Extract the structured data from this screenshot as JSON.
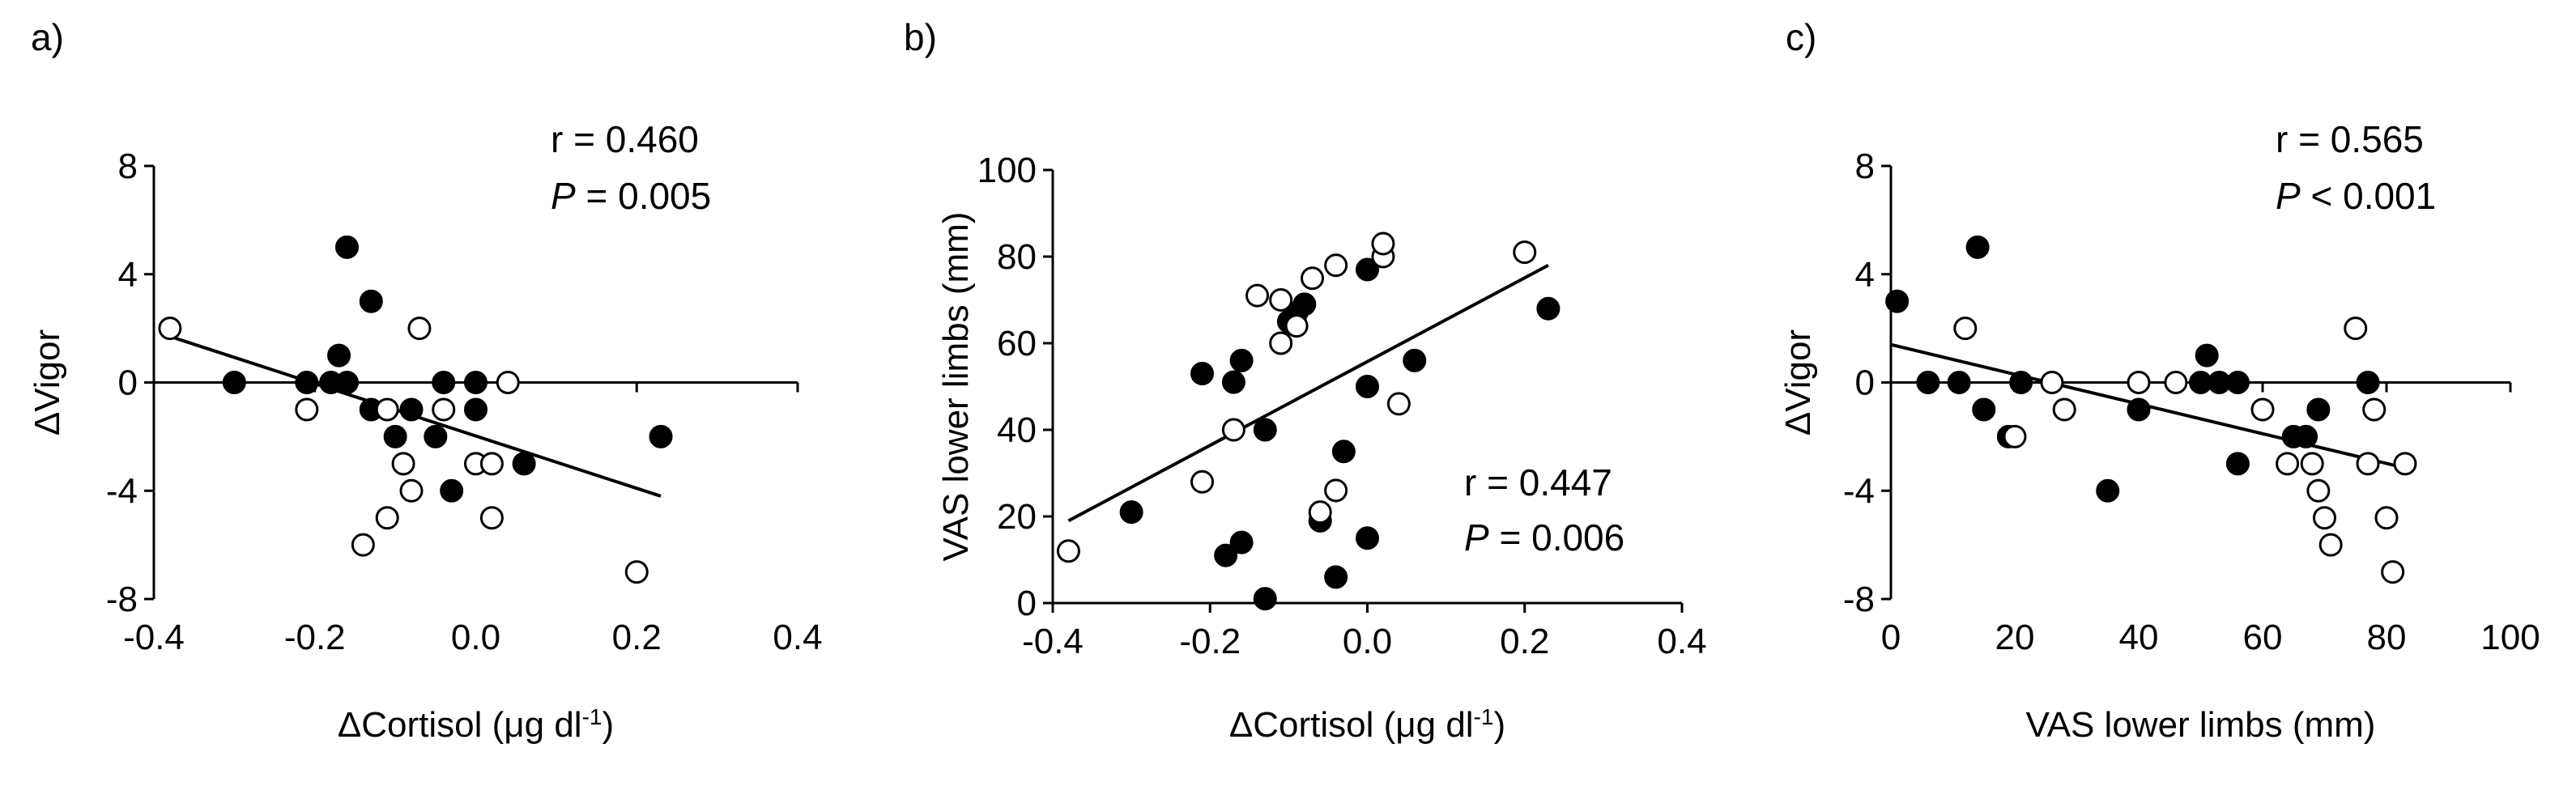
{
  "figure": {
    "colors": {
      "axis": "#000000",
      "filled": "#000000",
      "open_fill": "#ffffff",
      "open_stroke": "#000000"
    }
  },
  "chart_data": [
    {
      "type": "scatter",
      "panel_label": "a)",
      "xlabel": "ΔCortisol (μg dl",
      "xlabel_sup": "-1",
      "xlabel_close": ")",
      "ylabel": "ΔVigor",
      "xlim": [
        -0.4,
        0.4
      ],
      "ylim": [
        -8,
        8
      ],
      "xticks": [
        -0.4,
        -0.2,
        0,
        0.2,
        0.4
      ],
      "xtick_labels": [
        "-0.4",
        "-0.2",
        "0.0",
        "0.2",
        "0.4"
      ],
      "yticks": [
        -8,
        -4,
        0,
        4,
        8
      ],
      "ytick_labels": [
        "-8",
        "-4",
        "0",
        "4",
        "8"
      ],
      "stat_r": "r = 0.460",
      "stat_p_symbol": "P",
      "stat_p_value": " = 0.005",
      "trendline": {
        "x": [
          -0.38,
          0.23
        ],
        "y": [
          1.7,
          -4.2
        ]
      },
      "series": [
        {
          "name": "filled",
          "marker": "filled",
          "points": [
            [
              -0.3,
              0
            ],
            [
              -0.21,
              0
            ],
            [
              -0.18,
              0
            ],
            [
              -0.17,
              1
            ],
            [
              -0.16,
              5
            ],
            [
              -0.16,
              0
            ],
            [
              -0.13,
              3
            ],
            [
              -0.13,
              -1
            ],
            [
              -0.1,
              -2
            ],
            [
              -0.08,
              -1
            ],
            [
              -0.05,
              -2
            ],
            [
              -0.04,
              0
            ],
            [
              -0.03,
              -4
            ],
            [
              0,
              0
            ],
            [
              0,
              -1
            ],
            [
              0.06,
              -3
            ],
            [
              0.23,
              -2
            ]
          ]
        },
        {
          "name": "open",
          "marker": "open",
          "points": [
            [
              -0.38,
              2
            ],
            [
              -0.21,
              -1
            ],
            [
              -0.14,
              -6
            ],
            [
              -0.11,
              -5
            ],
            [
              -0.11,
              -1
            ],
            [
              -0.09,
              -3
            ],
            [
              -0.08,
              -4
            ],
            [
              -0.07,
              2
            ],
            [
              -0.04,
              -1
            ],
            [
              0,
              -3
            ],
            [
              0.02,
              -3
            ],
            [
              0.02,
              -5
            ],
            [
              0.04,
              0
            ],
            [
              0.2,
              -7
            ]
          ]
        }
      ]
    },
    {
      "type": "scatter",
      "panel_label": "b)",
      "xlabel": "ΔCortisol (μg dl",
      "xlabel_sup": "-1",
      "xlabel_close": ")",
      "ylabel": "VAS lower limbs (mm)",
      "xlim": [
        -0.4,
        0.4
      ],
      "ylim": [
        0,
        100
      ],
      "xticks": [
        -0.4,
        -0.2,
        0,
        0.2,
        0.4
      ],
      "xtick_labels": [
        "-0.4",
        "-0.2",
        "0.0",
        "0.2",
        "0.4"
      ],
      "yticks": [
        0,
        20,
        40,
        60,
        80,
        100
      ],
      "ytick_labels": [
        "0",
        "20",
        "40",
        "60",
        "80",
        "100"
      ],
      "stat_r": "r = 0.447",
      "stat_p_symbol": "P",
      "stat_p_value": " = 0.006",
      "trendline": {
        "x": [
          -0.38,
          0.23
        ],
        "y": [
          19,
          78
        ]
      },
      "series": [
        {
          "name": "filled",
          "marker": "filled",
          "points": [
            [
              -0.3,
              21
            ],
            [
              -0.21,
              53
            ],
            [
              -0.18,
              11
            ],
            [
              -0.17,
              51
            ],
            [
              -0.16,
              56
            ],
            [
              -0.16,
              14
            ],
            [
              -0.13,
              40
            ],
            [
              -0.13,
              1
            ],
            [
              -0.1,
              65
            ],
            [
              -0.09,
              67
            ],
            [
              -0.08,
              69
            ],
            [
              -0.06,
              19
            ],
            [
              -0.04,
              6
            ],
            [
              -0.03,
              35
            ],
            [
              0,
              50
            ],
            [
              0,
              77
            ],
            [
              0,
              15
            ],
            [
              0.06,
              56
            ],
            [
              0.23,
              68
            ]
          ]
        },
        {
          "name": "open",
          "marker": "open",
          "points": [
            [
              -0.38,
              12
            ],
            [
              -0.21,
              28
            ],
            [
              -0.17,
              40
            ],
            [
              -0.14,
              71
            ],
            [
              -0.11,
              70
            ],
            [
              -0.11,
              60
            ],
            [
              -0.09,
              64
            ],
            [
              -0.07,
              75
            ],
            [
              -0.06,
              21
            ],
            [
              -0.04,
              78
            ],
            [
              -0.04,
              26
            ],
            [
              0.02,
              80
            ],
            [
              0.02,
              83
            ],
            [
              0.04,
              46
            ],
            [
              0.2,
              81
            ]
          ]
        }
      ]
    },
    {
      "type": "scatter",
      "panel_label": "c)",
      "xlabel": "VAS lower limbs (mm)",
      "ylabel": "ΔVigor",
      "xlim": [
        0,
        100
      ],
      "ylim": [
        -8,
        8
      ],
      "xticks": [
        0,
        20,
        40,
        60,
        80,
        100
      ],
      "xtick_labels": [
        "0",
        "20",
        "40",
        "60",
        "80",
        "100"
      ],
      "yticks": [
        -8,
        -4,
        0,
        4,
        8
      ],
      "ytick_labels": [
        "-8",
        "-4",
        "0",
        "4",
        "8"
      ],
      "stat_r": "r = 0.565",
      "stat_p_symbol": "P",
      "stat_p_value": " < 0.001",
      "trendline": {
        "x": [
          0,
          82
        ],
        "y": [
          1.4,
          -3.1
        ]
      },
      "series": [
        {
          "name": "filled",
          "marker": "filled",
          "points": [
            [
              1,
              3
            ],
            [
              6,
              0
            ],
            [
              11,
              0
            ],
            [
              14,
              5
            ],
            [
              15,
              -1
            ],
            [
              19,
              -2
            ],
            [
              21,
              0
            ],
            [
              35,
              -4
            ],
            [
              40,
              -1
            ],
            [
              51,
              1
            ],
            [
              50,
              0
            ],
            [
              53,
              0
            ],
            [
              56,
              0
            ],
            [
              56,
              -3
            ],
            [
              65,
              -2
            ],
            [
              67,
              -2
            ],
            [
              69,
              -1
            ],
            [
              77,
              0
            ]
          ]
        },
        {
          "name": "open",
          "marker": "open",
          "points": [
            [
              12,
              2
            ],
            [
              20,
              -2
            ],
            [
              26,
              0
            ],
            [
              28,
              -1
            ],
            [
              40,
              0
            ],
            [
              46,
              0
            ],
            [
              60,
              -1
            ],
            [
              64,
              -3
            ],
            [
              68,
              -3
            ],
            [
              69,
              -4
            ],
            [
              70,
              -5
            ],
            [
              71,
              -6
            ],
            [
              75,
              2
            ],
            [
              77,
              -3
            ],
            [
              78,
              -1
            ],
            [
              80,
              -5
            ],
            [
              81,
              -7
            ],
            [
              83,
              -3
            ]
          ]
        }
      ]
    }
  ]
}
